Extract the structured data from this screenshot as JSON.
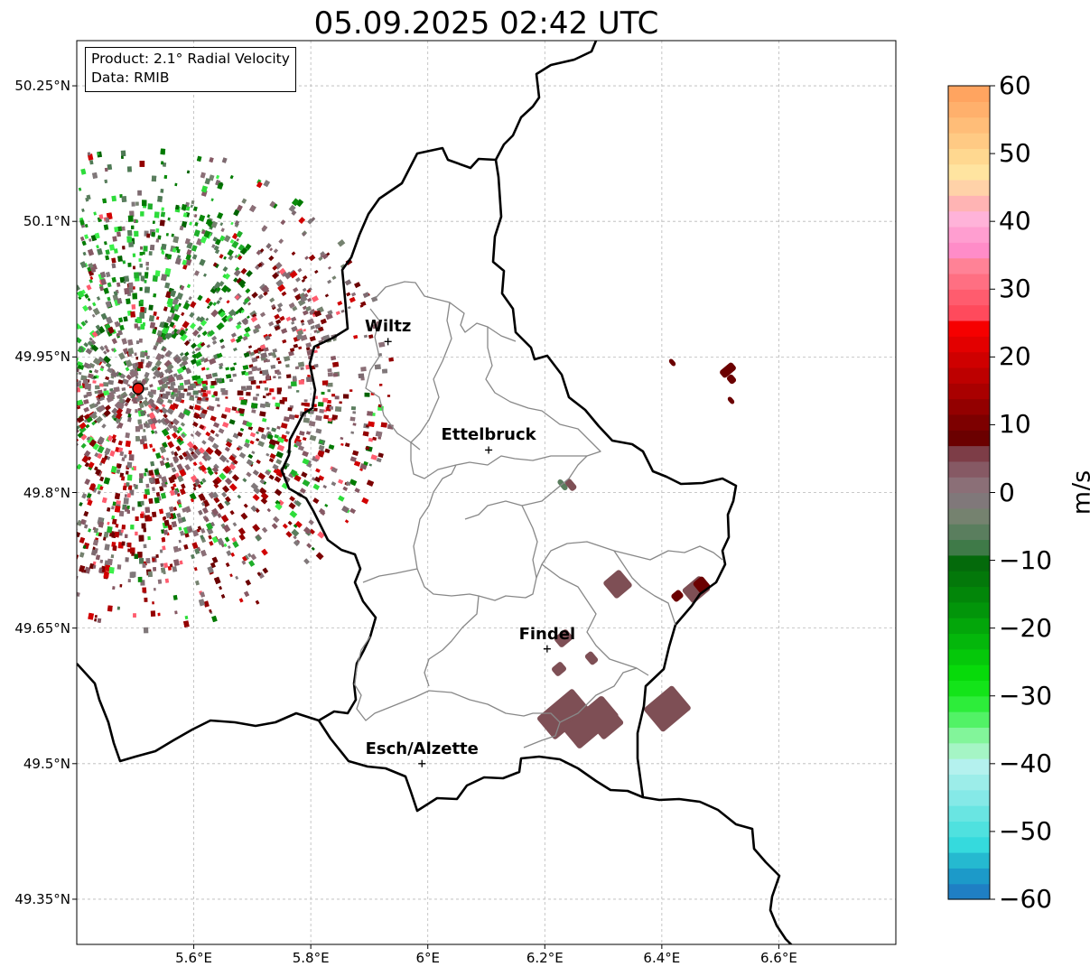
{
  "title": "05.09.2025 02:42 UTC",
  "info": {
    "product": "Product: 2.1° Radial Velocity",
    "data_source": "Data: RMIB"
  },
  "map": {
    "lon_range": [
      5.4,
      6.8
    ],
    "lat_range": [
      49.3,
      50.3
    ],
    "lat_ticks": [
      {
        "value": 50.25,
        "label": "50.25°N"
      },
      {
        "value": 50.1,
        "label": "50.1°N"
      },
      {
        "value": 49.95,
        "label": "49.95°N"
      },
      {
        "value": 49.8,
        "label": "49.8°N"
      },
      {
        "value": 49.65,
        "label": "49.65°N"
      },
      {
        "value": 49.5,
        "label": "49.5°N"
      },
      {
        "value": 49.35,
        "label": "49.35°N"
      }
    ],
    "lon_ticks": [
      {
        "value": 5.6,
        "label": "5.6°E"
      },
      {
        "value": 5.8,
        "label": "5.8°E"
      },
      {
        "value": 6.0,
        "label": "6°E"
      },
      {
        "value": 6.2,
        "label": "6.2°E"
      },
      {
        "value": 6.4,
        "label": "6.4°E"
      },
      {
        "value": 6.6,
        "label": "6.6°E"
      }
    ],
    "gridlines": true,
    "radar_site": {
      "lon": 5.505,
      "lat": 49.915
    },
    "cities": [
      {
        "name": "Wiltz",
        "lon": 5.932,
        "lat": 49.967
      },
      {
        "name": "Ettelbruck",
        "lon": 6.104,
        "lat": 49.847
      },
      {
        "name": "Findel",
        "lon": 6.204,
        "lat": 49.627
      },
      {
        "name": "Esch/Alzette",
        "lon": 5.99,
        "lat": 49.5
      }
    ]
  },
  "colorbar": {
    "label": "m/s",
    "min": -60,
    "max": 60,
    "ticks": [
      {
        "value": 60,
        "label": "60"
      },
      {
        "value": 50,
        "label": "50"
      },
      {
        "value": 40,
        "label": "40"
      },
      {
        "value": 30,
        "label": "30"
      },
      {
        "value": 20,
        "label": "20"
      },
      {
        "value": 10,
        "label": "10"
      },
      {
        "value": 0,
        "label": "0"
      },
      {
        "value": -10,
        "label": "−10"
      },
      {
        "value": -20,
        "label": "−20"
      },
      {
        "value": -30,
        "label": "−30"
      },
      {
        "value": -40,
        "label": "−40"
      },
      {
        "value": -50,
        "label": "−50"
      },
      {
        "value": -60,
        "label": "−60"
      }
    ],
    "colors": [
      "#1f7fc4",
      "#1c9ac9",
      "#25b9d0",
      "#35dadd",
      "#4fe1df",
      "#69e5e2",
      "#85e9e7",
      "#9cede9",
      "#b4f1ee",
      "#a5f5c5",
      "#82f59a",
      "#52f266",
      "#2ded3a",
      "#13e419",
      "#07da0a",
      "#05c80a",
      "#04b70b",
      "#03a60a",
      "#02950a",
      "#028609",
      "#03780a",
      "#046a0b",
      "#3f7a48",
      "#5a7e5e",
      "#75826f",
      "#80787a",
      "#8b6f77",
      "#865964",
      "#7d3d47",
      "#6b0000",
      "#7d0000",
      "#930000",
      "#a90000",
      "#bd0000",
      "#cf0000",
      "#e30000",
      "#f60000",
      "#ff4a5c",
      "#ff5c6e",
      "#ff6f82",
      "#ff8296",
      "#ff8cc8",
      "#ff9ed0",
      "#ffb3d9",
      "#ffb4b4",
      "#ffd2a8",
      "#ffe4a0",
      "#ffd890",
      "#ffca84",
      "#ffbd78",
      "#ffb06c",
      "#ffa460"
    ]
  }
}
